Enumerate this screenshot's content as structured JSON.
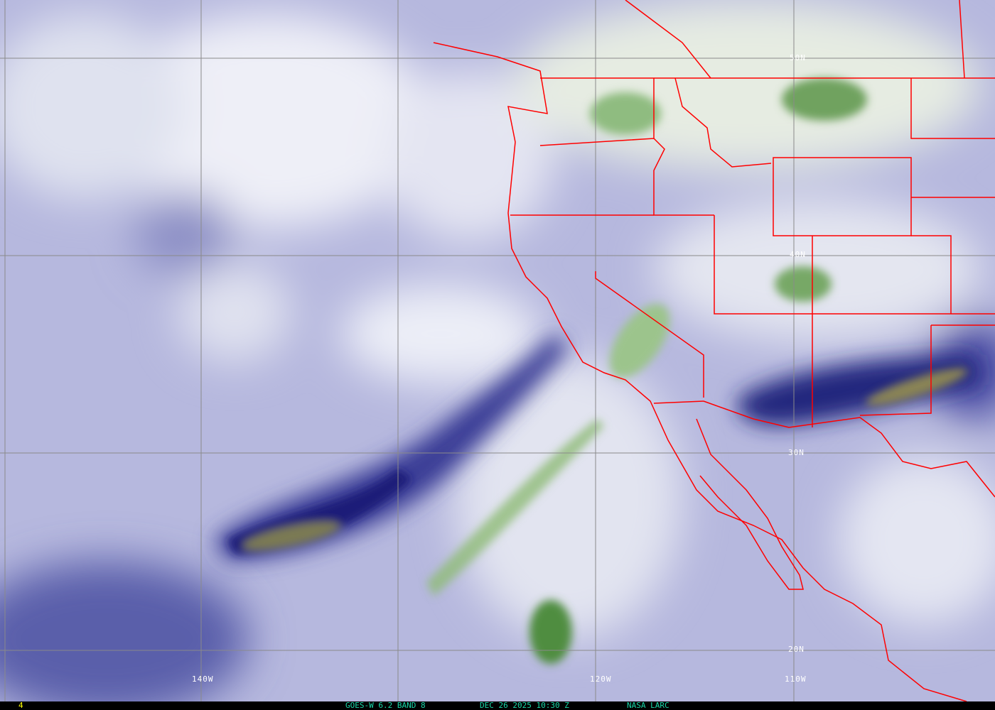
{
  "image": {
    "type": "water vapor satellite image",
    "colors": {
      "dry": "#1a1a80",
      "moist": "#eef0f8",
      "cloud": "#5f9a4a",
      "borders": "#ff0000",
      "grid": "#808080",
      "caption": "#19d6a8",
      "frame_number": "#ffff00"
    }
  },
  "grid_labels": {
    "lat": [
      "50N",
      "40N",
      "30N",
      "20N"
    ],
    "lon": [
      "140W",
      "120W",
      "110W"
    ]
  },
  "caption": {
    "frame_number": "4",
    "satellite": "GOES-W 6.2 BAND 8",
    "datetime": "DEC 26 2025 10:30 Z",
    "source": "NASA LARC"
  }
}
